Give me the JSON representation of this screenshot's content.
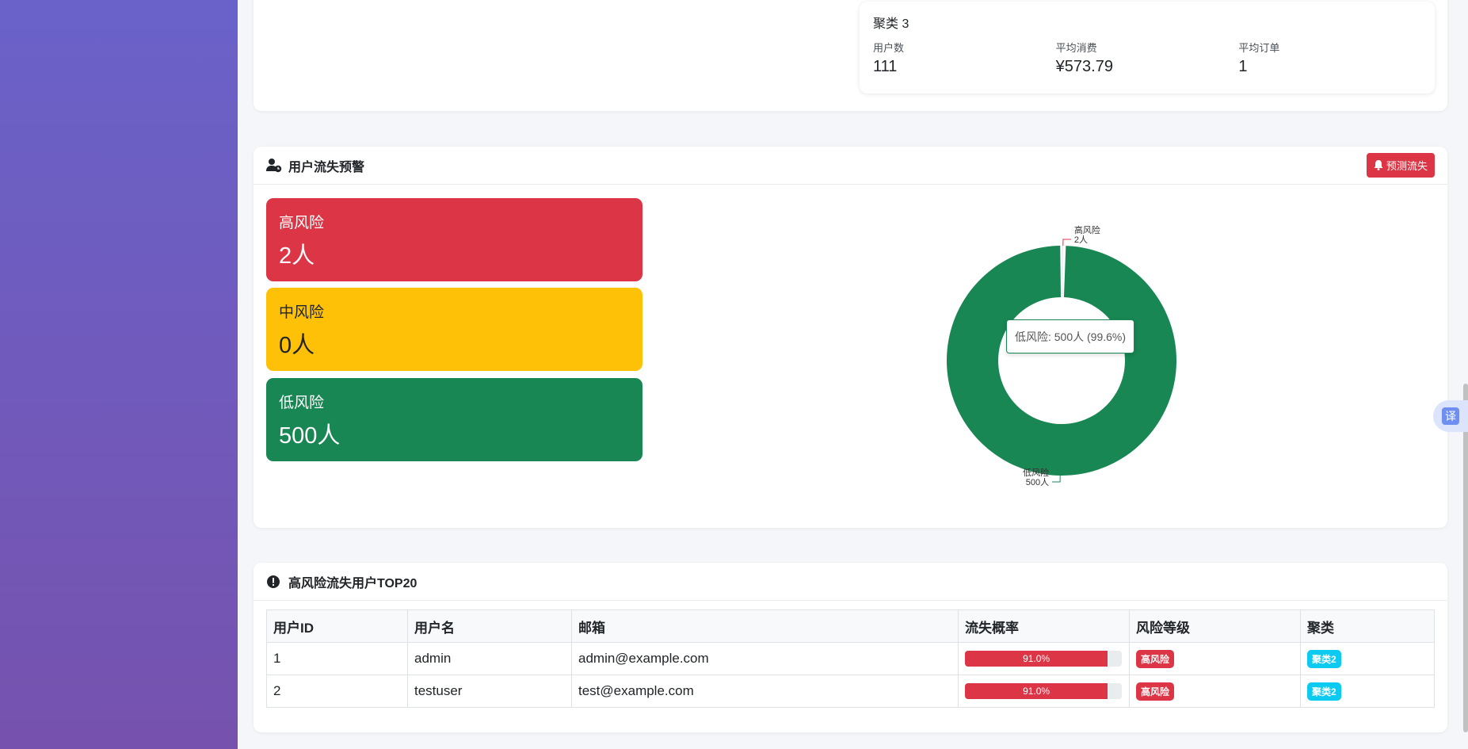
{
  "cluster": {
    "title": "聚类 3",
    "stats": [
      {
        "label": "用户数",
        "value": "111"
      },
      {
        "label": "平均消费",
        "value": "¥573.79"
      },
      {
        "label": "平均订单",
        "value": "1"
      }
    ]
  },
  "churn": {
    "title": "用户流失预警",
    "predict_button": "预测流失",
    "risks": [
      {
        "label": "高风险",
        "count": "2人"
      },
      {
        "label": "中风险",
        "count": "0人"
      },
      {
        "label": "低风险",
        "count": "500人"
      }
    ],
    "tooltip": "低风险: 500人 (99.6%)"
  },
  "chart_data": {
    "type": "pie",
    "categories": [
      "高风险",
      "中风险",
      "低风险"
    ],
    "values": [
      2,
      0,
      500
    ],
    "colors": [
      "#dc3545",
      "#ffc107",
      "#198754"
    ],
    "labels": [
      {
        "name": "高风险",
        "value": "2人"
      },
      {
        "name": "低风险",
        "value": "500人"
      }
    ]
  },
  "top_table": {
    "title": "高风险流失用户TOP20",
    "columns": [
      "用户ID",
      "用户名",
      "邮箱",
      "流失概率",
      "风险等级",
      "聚类"
    ],
    "rows": [
      {
        "id": "1",
        "username": "admin",
        "email": "admin@example.com",
        "prob": 0.91,
        "prob_label": "91.0%",
        "risk": "高风险",
        "cluster": "聚类2"
      },
      {
        "id": "2",
        "username": "testuser",
        "email": "test@example.com",
        "prob": 0.91,
        "prob_label": "91.0%",
        "risk": "高风险",
        "cluster": "聚类2"
      }
    ]
  },
  "translate_label": "译"
}
